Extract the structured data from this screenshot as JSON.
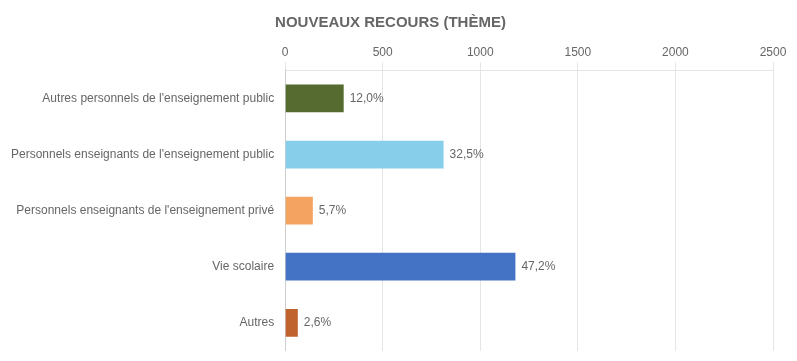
{
  "chart_data": {
    "type": "bar",
    "orientation": "horizontal",
    "title": "NOUVEAUX RECOURS (THÈME)",
    "categories": [
      "Autres personnels de l'enseignement public",
      "Personnels enseignants de l'enseignement public",
      "Personnels enseignants de l'enseignement privé",
      "Vie scolaire",
      "Autres"
    ],
    "values": [
      300,
      812,
      142,
      1180,
      65
    ],
    "value_labels": [
      "12,0%",
      "32,5%",
      "5,7%",
      "47,2%",
      "2,6%"
    ],
    "data_labels": true,
    "colors": [
      "#556B2F",
      "#87CEEB",
      "#F4A460",
      "#4472C4",
      "#C0622E"
    ],
    "xlim": [
      0,
      2500
    ],
    "xticks": [
      0,
      500,
      1000,
      1500,
      2000,
      2500
    ],
    "grid": true
  }
}
